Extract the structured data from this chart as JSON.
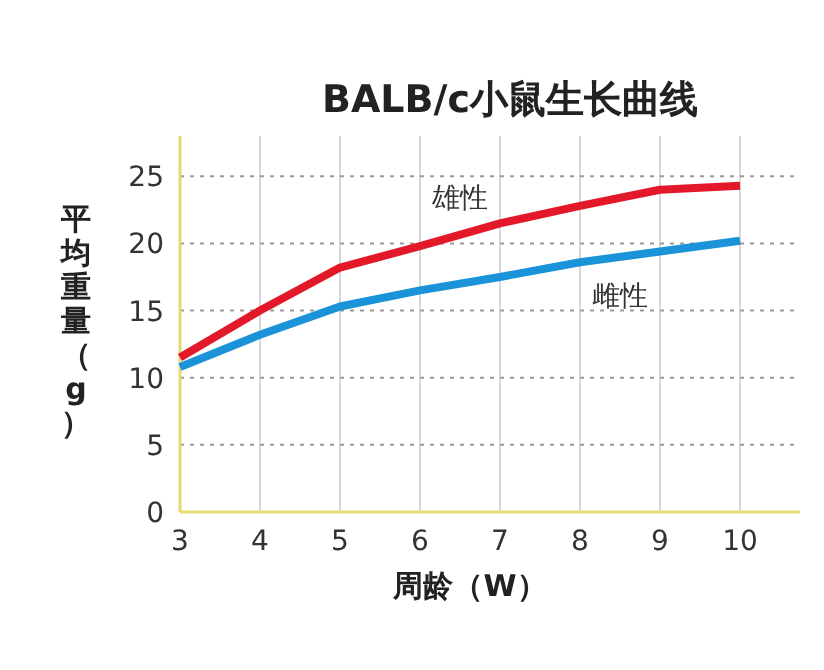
{
  "chart_data": {
    "type": "line",
    "title": "BALB/c小鼠生长曲线",
    "xlabel": "周龄（W）",
    "ylabel": "平均重量（g）",
    "x": [
      3,
      4,
      5,
      6,
      7,
      8,
      9,
      10
    ],
    "xlim": [
      3,
      10.75
    ],
    "xticks": [
      3,
      4,
      5,
      6,
      7,
      8,
      9,
      10
    ],
    "ylim": [
      0,
      28
    ],
    "yticks": [
      0,
      5,
      10,
      15,
      20,
      25
    ],
    "grid": true,
    "marker": "none",
    "line_style": "solid",
    "series": [
      {
        "name": "雄性",
        "color": "#e3192a",
        "values": [
          11.5,
          15,
          18.2,
          19.8,
          21.5,
          22.8,
          24,
          24.3
        ]
      },
      {
        "name": "雌性",
        "color": "#1b93d9",
        "values": [
          10.8,
          13.2,
          15.3,
          16.5,
          17.5,
          18.6,
          19.4,
          20.2
        ]
      }
    ]
  }
}
